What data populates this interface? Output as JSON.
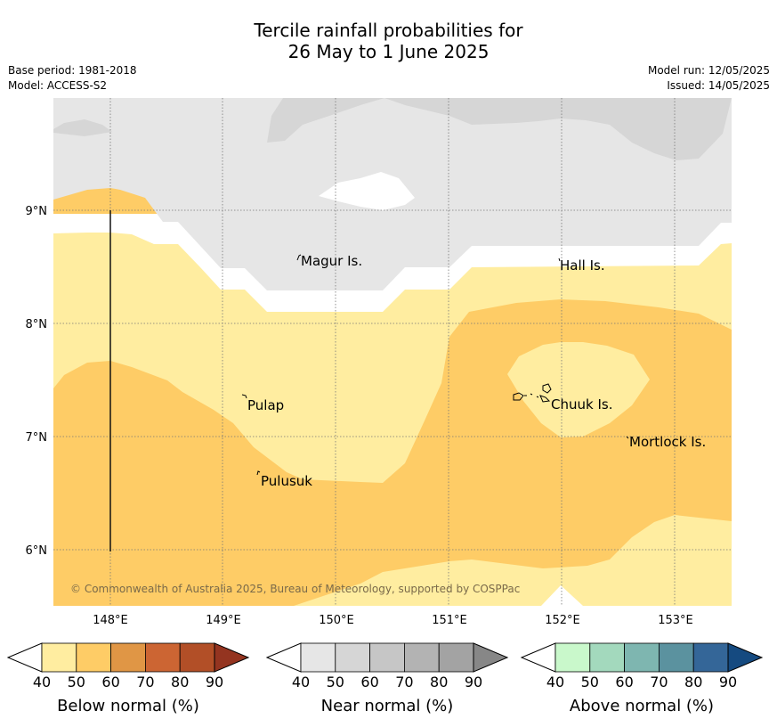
{
  "title_line1": "Tercile rainfall probabilities for",
  "title_line2": "26 May to 1 June 2025",
  "base_period": "Base period: 1981-2018",
  "model": "Model: ACCESS-S2",
  "model_run": "Model run: 12/05/2025",
  "issued": "Issued: 14/05/2025",
  "copyright": "© Commonwealth of Australia 2025, Bureau of Meteorology, supported by COSPPac",
  "lon_ticks": [
    "148°E",
    "149°E",
    "150°E",
    "151°E",
    "152°E",
    "153°E"
  ],
  "lat_ticks": [
    "9°N",
    "8°N",
    "7°N",
    "6°N"
  ],
  "places": [
    "Magur Is.",
    "Hall Is.",
    "Pulap",
    "Chuuk Is.",
    "Mortlock Is.",
    "Pulusuk"
  ],
  "colorbars": [
    {
      "label": "Below normal (%)",
      "ticks": [
        "40",
        "50",
        "60",
        "70",
        "80",
        "90"
      ],
      "colors": [
        "#ffffff",
        "#ffeda0",
        "#fecc66",
        "#e09645",
        "#cc6533",
        "#b24f27",
        "#943420"
      ]
    },
    {
      "label": "Near normal (%)",
      "ticks": [
        "40",
        "50",
        "60",
        "70",
        "80",
        "90"
      ],
      "colors": [
        "#ffffff",
        "#e6e6e6",
        "#d6d6d6",
        "#c6c6c6",
        "#b3b3b3",
        "#a3a3a3",
        "#878787"
      ]
    },
    {
      "label": "Above normal (%)",
      "ticks": [
        "40",
        "50",
        "60",
        "70",
        "80",
        "90"
      ],
      "colors": [
        "#ffffff",
        "#c9f8cb",
        "#a3d9bd",
        "#7eb6b0",
        "#5b929f",
        "#346698",
        "#154a80"
      ]
    }
  ],
  "colors": {
    "below_50": "#ffeda0",
    "below_60": "#fecc66",
    "near_50": "#e6e6e6",
    "near_60": "#d6d6d6",
    "grid": "#777777",
    "copyright_text": "#7a6a4a"
  }
}
